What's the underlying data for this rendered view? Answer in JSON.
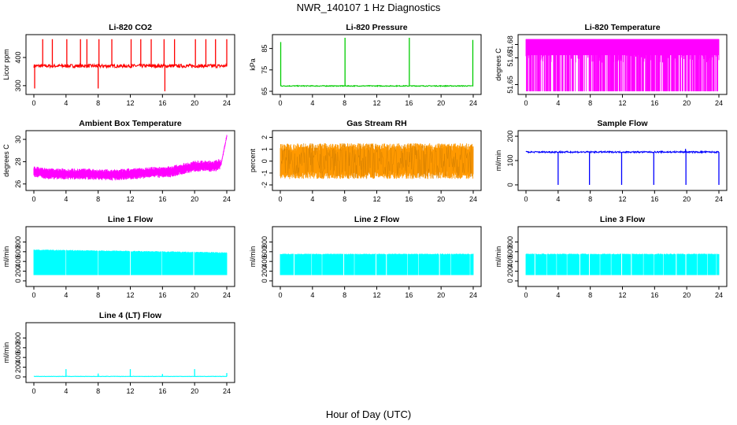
{
  "figure": {
    "title": "NWR_140107  1 Hz Diagnostics",
    "xlabel": "Hour of Day (UTC)"
  },
  "chart_data": [
    {
      "type": "line",
      "title": "Li-820 CO2",
      "ylabel": "Licor ppm",
      "color": "#ff0000",
      "xlim": [
        0,
        24
      ],
      "ylim": [
        280,
        470
      ],
      "xticks": [
        0,
        4,
        8,
        12,
        16,
        20,
        24
      ],
      "yticks": [
        300,
        400
      ],
      "baseline": 370,
      "noise": 6,
      "pattern": "spikes",
      "spikes": [
        {
          "x": 1.1,
          "y": 465
        },
        {
          "x": 2.3,
          "y": 465
        },
        {
          "x": 4.1,
          "y": 465
        },
        {
          "x": 5.8,
          "y": 465
        },
        {
          "x": 6.6,
          "y": 465
        },
        {
          "x": 8.1,
          "y": 465
        },
        {
          "x": 8.0,
          "y": 290
        },
        {
          "x": 9.7,
          "y": 465
        },
        {
          "x": 12.1,
          "y": 465
        },
        {
          "x": 13.3,
          "y": 465
        },
        {
          "x": 14.6,
          "y": 465
        },
        {
          "x": 16.2,
          "y": 465
        },
        {
          "x": 16.3,
          "y": 280
        },
        {
          "x": 17.5,
          "y": 465
        },
        {
          "x": 20.1,
          "y": 465
        },
        {
          "x": 21.4,
          "y": 465
        },
        {
          "x": 22.6,
          "y": 465
        },
        {
          "x": 24.0,
          "y": 465
        },
        {
          "x": 0.1,
          "y": 290
        }
      ]
    },
    {
      "type": "line",
      "title": "Li-820 Pressure",
      "ylabel": "kPa",
      "color": "#00cc00",
      "xlim": [
        0,
        24
      ],
      "ylim": [
        65,
        90
      ],
      "xticks": [
        0,
        4,
        8,
        12,
        16,
        20,
        24
      ],
      "yticks": [
        65,
        75,
        85
      ],
      "baseline": 67.5,
      "noise": 0.2,
      "pattern": "spikes",
      "spikes": [
        {
          "x": 0.05,
          "y": 88
        },
        {
          "x": 8.05,
          "y": 90
        },
        {
          "x": 16.05,
          "y": 90
        },
        {
          "x": 23.95,
          "y": 89
        }
      ]
    },
    {
      "type": "line",
      "title": "Li-820 Temperature",
      "ylabel": "degrees C",
      "color": "#ff00ff",
      "xlim": [
        0,
        24
      ],
      "ylim": [
        51.645,
        51.685
      ],
      "xticks": [
        0,
        4,
        8,
        12,
        16,
        20,
        24
      ],
      "yticks": [
        51.65,
        51.67,
        51.68
      ],
      "baseline": 51.66,
      "noise": 0.02,
      "pattern": "bands",
      "low": 51.645,
      "high": 51.684
    },
    {
      "type": "line",
      "title": "Ambient Box Temperature",
      "ylabel": "degrees C",
      "color": "#ff00ff",
      "xlim": [
        0,
        24
      ],
      "ylim": [
        25.7,
        30.5
      ],
      "xticks": [
        0,
        4,
        8,
        12,
        16,
        20,
        24
      ],
      "yticks": [
        26,
        28,
        30
      ],
      "baseline": 27.0,
      "noise": 0.5,
      "pattern": "drift",
      "profile": [
        {
          "x": 0,
          "y": 27.1
        },
        {
          "x": 2,
          "y": 26.9
        },
        {
          "x": 6,
          "y": 26.9
        },
        {
          "x": 10,
          "y": 26.8
        },
        {
          "x": 14,
          "y": 27.0
        },
        {
          "x": 17,
          "y": 27.1
        },
        {
          "x": 20,
          "y": 27.6
        },
        {
          "x": 22.5,
          "y": 27.6
        },
        {
          "x": 23.3,
          "y": 27.8
        },
        {
          "x": 24,
          "y": 30.3
        }
      ]
    },
    {
      "type": "line",
      "title": "Gas Stream RH",
      "ylabel": "percent",
      "color": "#ff9900",
      "xlim": [
        0,
        24
      ],
      "ylim": [
        -2.2,
        2.3
      ],
      "xticks": [
        0,
        4,
        8,
        12,
        16,
        20,
        24
      ],
      "yticks": [
        -2,
        -1,
        0,
        1,
        2
      ],
      "baseline": 0.0,
      "noise": 1.5,
      "pattern": "noise"
    },
    {
      "type": "line",
      "title": "Sample Flow",
      "ylabel": "ml/min",
      "color": "#0000ff",
      "xlim": [
        0,
        24
      ],
      "ylim": [
        -10,
        210
      ],
      "xticks": [
        0,
        4,
        8,
        12,
        16,
        20,
        24
      ],
      "yticks": [
        0,
        100,
        200
      ],
      "baseline": 135,
      "noise": 3,
      "pattern": "spikes",
      "spikes": [
        {
          "x": 4.0,
          "y": 0
        },
        {
          "x": 7.9,
          "y": 0
        },
        {
          "x": 11.9,
          "y": 0
        },
        {
          "x": 15.9,
          "y": 0
        },
        {
          "x": 19.9,
          "y": 0
        },
        {
          "x": 19.85,
          "y": 148
        },
        {
          "x": 24.0,
          "y": 0
        }
      ]
    },
    {
      "type": "line",
      "title": "Line 1 Flow",
      "ylabel": "ml/min",
      "color": "#00ffff",
      "xlim": [
        0,
        24
      ],
      "ylim": [
        -50,
        1050
      ],
      "xticks": [
        0,
        4,
        8,
        12,
        16,
        20,
        24
      ],
      "yticks": [
        0,
        200,
        400,
        600,
        800
      ],
      "baseline": 400,
      "noise": 0,
      "pattern": "bands",
      "low": 120,
      "high": 650,
      "gaps": [
        4.0,
        8.0,
        12.0,
        15.9,
        19.9
      ]
    },
    {
      "type": "line",
      "title": "Line 2 Flow",
      "ylabel": "ml/min",
      "color": "#00ffff",
      "xlim": [
        0,
        24
      ],
      "ylim": [
        -50,
        1050
      ],
      "xticks": [
        0,
        4,
        8,
        12,
        16,
        20,
        24
      ],
      "yticks": [
        0,
        200,
        400,
        600,
        800
      ],
      "baseline": 350,
      "noise": 0,
      "pattern": "bands",
      "low": 120,
      "high": 560,
      "gaps": [
        1.7,
        3.9,
        5.2,
        7.9,
        9.2,
        11.9,
        13.2,
        15.8,
        17.2,
        19.8,
        21.2,
        23.6
      ]
    },
    {
      "type": "line",
      "title": "Line 3 Flow",
      "ylabel": "ml/min",
      "color": "#00ffff",
      "xlim": [
        0,
        24
      ],
      "ylim": [
        -50,
        1050
      ],
      "xticks": [
        0,
        4,
        8,
        12,
        16,
        20,
        24
      ],
      "yticks": [
        0,
        200,
        400,
        600,
        800
      ],
      "baseline": 350,
      "noise": 0,
      "pattern": "bands",
      "low": 120,
      "high": 560,
      "gaps": [
        1.1,
        2.6,
        3.8,
        5.1,
        6.7,
        7.9,
        9.2,
        10.6,
        11.9,
        13.1,
        14.6,
        15.9,
        17.1,
        18.7,
        19.9,
        21.3,
        22.6,
        23.7
      ]
    },
    {
      "type": "line",
      "title": "Line 4 (LT) Flow",
      "ylabel": "ml/min",
      "color": "#00ffff",
      "xlim": [
        0,
        24
      ],
      "ylim": [
        -50,
        1050
      ],
      "xticks": [
        0,
        4,
        8,
        12,
        16,
        20,
        24
      ],
      "yticks": [
        0,
        200,
        400,
        600,
        800
      ],
      "baseline": 10,
      "noise": 3,
      "pattern": "spikes",
      "spikes": [
        {
          "x": 4.0,
          "y": 160
        },
        {
          "x": 8.0,
          "y": 70
        },
        {
          "x": 12.0,
          "y": 160
        },
        {
          "x": 16.0,
          "y": 60
        },
        {
          "x": 20.0,
          "y": 160
        },
        {
          "x": 24.0,
          "y": 80
        }
      ]
    }
  ]
}
